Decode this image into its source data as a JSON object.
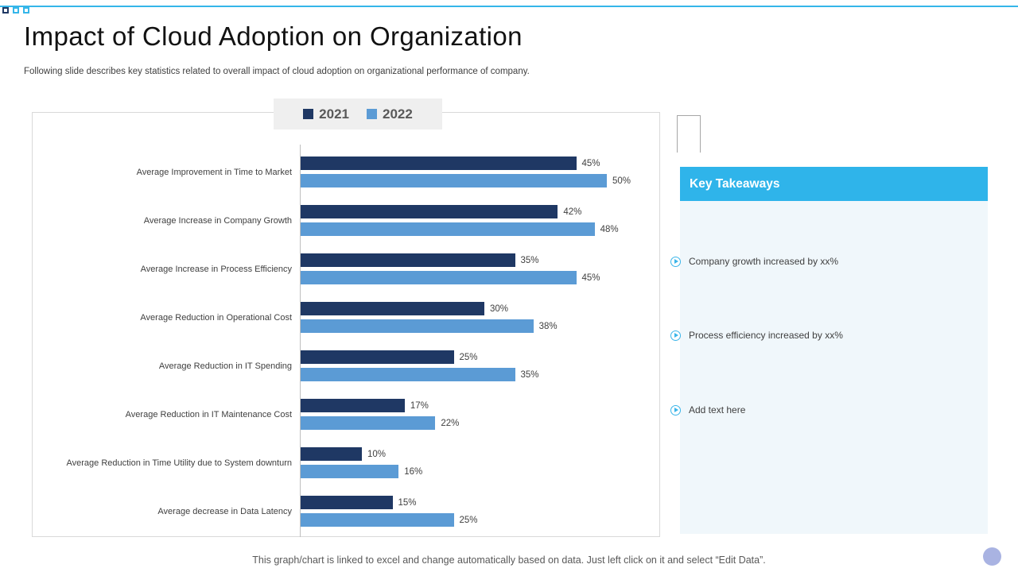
{
  "slide": {
    "title": "Impact of Cloud Adoption on Organization",
    "subtitle": "Following slide describes key statistics related to overall impact of cloud adoption on organizational performance of company.",
    "footer": "This graph/chart is linked to excel and change automatically based on data. Just left click on it and select “Edit Data”."
  },
  "chart_data": {
    "type": "bar",
    "orientation": "horizontal",
    "title": "",
    "categories": [
      "Average Improvement in Time to Market",
      "Average Increase in Company Growth",
      "Average Increase in Process Efficiency",
      "Average Reduction in Operational Cost",
      "Average Reduction in IT Spending",
      "Average Reduction in IT Maintenance Cost",
      "Average Reduction in Time Utility due to System downturn",
      "Average decrease in Data Latency"
    ],
    "series": [
      {
        "name": "2021",
        "color": "#1F3864",
        "values": [
          45,
          42,
          35,
          30,
          25,
          17,
          10,
          15
        ]
      },
      {
        "name": "2022",
        "color": "#5B9BD5",
        "values": [
          50,
          48,
          45,
          38,
          35,
          22,
          16,
          25
        ]
      }
    ],
    "value_suffix": "%",
    "xlim": [
      0,
      52
    ],
    "grid": false,
    "legend_position": "top"
  },
  "takeaways": {
    "header": "Key Takeaways",
    "items": [
      "Company growth increased by xx%",
      "Process efficiency increased by xx%",
      "Add text here"
    ]
  },
  "colors": {
    "accent_blue": "#2FB4EA",
    "navy": "#1F3864",
    "bar_blue": "#5B9BD5",
    "panel_bg": "#F0F7FB",
    "legend_bg": "#EFEFEF"
  }
}
